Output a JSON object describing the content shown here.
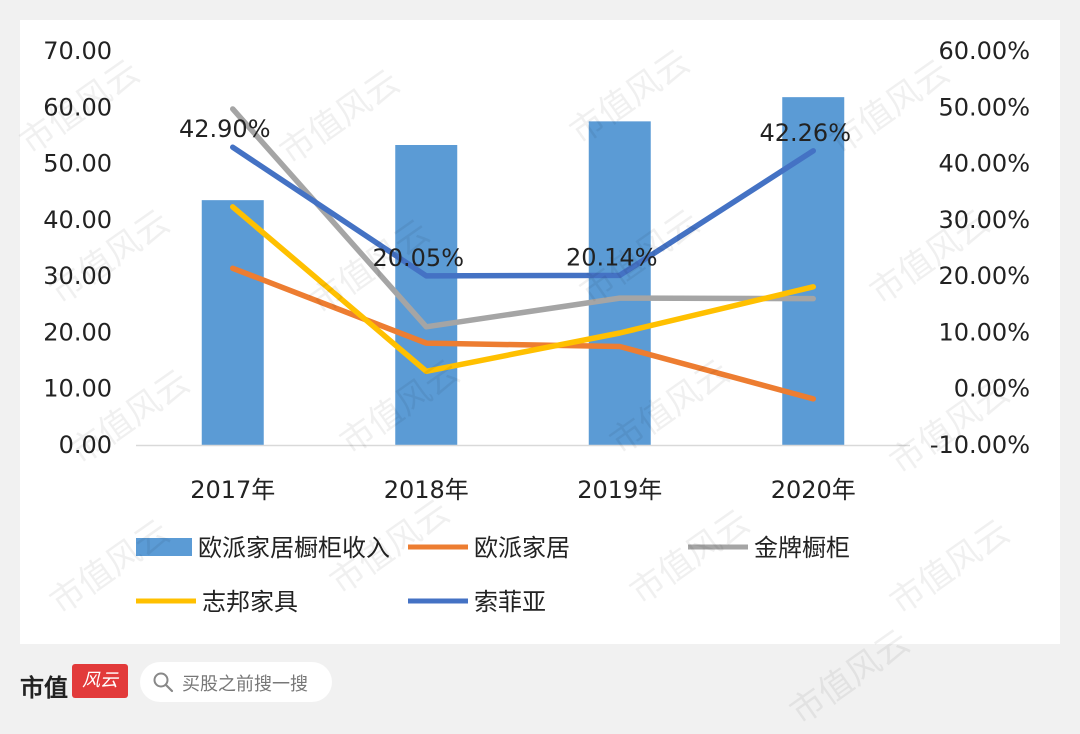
{
  "chart_data": {
    "type": "bar+line",
    "categories": [
      "2017年",
      "2018年",
      "2019年",
      "2020年"
    ],
    "bar_series": {
      "name": "欧派家居橱柜收入",
      "values": [
        43.5,
        53.3,
        57.5,
        61.8
      ],
      "color": "#5b9bd5",
      "axis": "left"
    },
    "line_series": [
      {
        "name": "欧派家居",
        "values": [
          0.214,
          0.081,
          0.075,
          -0.018
        ],
        "color": "#ed7d31",
        "axis": "right"
      },
      {
        "name": "金牌橱柜",
        "values": [
          0.497,
          0.11,
          0.161,
          0.16
        ],
        "color": "#a5a5a5",
        "axis": "right"
      },
      {
        "name": "志邦家具",
        "values": [
          0.323,
          0.031,
          0.099,
          0.181
        ],
        "color": "#ffc000",
        "axis": "right"
      },
      {
        "name": "索菲亚",
        "values": [
          0.429,
          0.2005,
          0.2014,
          0.4226
        ],
        "color": "#4472c4",
        "axis": "right"
      }
    ],
    "data_labels": [
      {
        "series": "索菲亚",
        "index": 0,
        "text": "42.90%"
      },
      {
        "series": "索菲亚",
        "index": 1,
        "text": "20.05%"
      },
      {
        "series": "索菲亚",
        "index": 2,
        "text": "20.14%"
      },
      {
        "series": "索菲亚",
        "index": 3,
        "text": "42.26%"
      }
    ],
    "left_axis": {
      "ylim": [
        0,
        70
      ],
      "ticks": [
        "0.00",
        "10.00",
        "20.00",
        "30.00",
        "40.00",
        "50.00",
        "60.00",
        "70.00"
      ]
    },
    "right_axis": {
      "ylim": [
        -0.1,
        0.6
      ],
      "ticks": [
        "-10.00%",
        "0.00%",
        "10.00%",
        "20.00%",
        "30.00%",
        "40.00%",
        "50.00%",
        "60.00%"
      ]
    },
    "grid": false,
    "legend_position": "bottom"
  },
  "footer": {
    "brand": "市值",
    "logo_text": "风云",
    "search_placeholder": "买股之前搜一搜",
    "search_icon": "search-icon"
  },
  "watermark_text": "市值风云"
}
